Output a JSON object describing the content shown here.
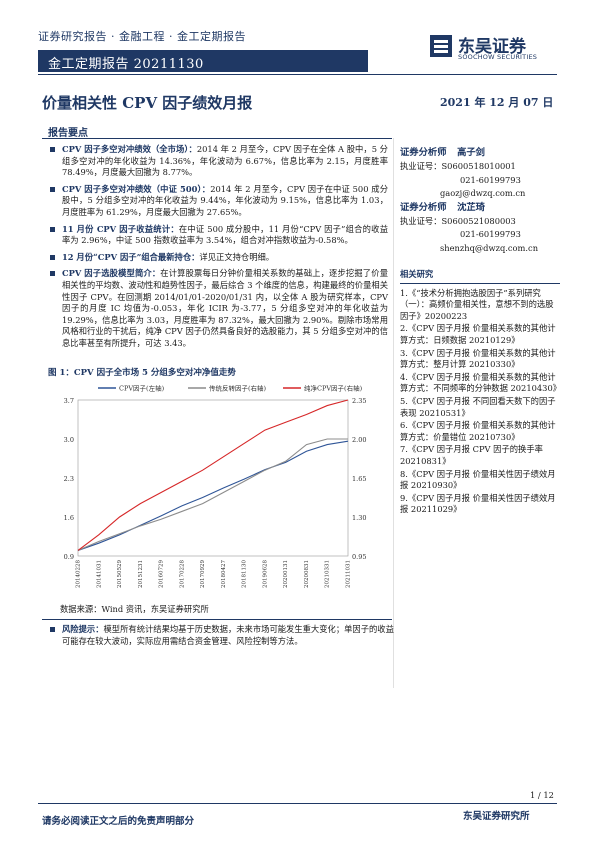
{
  "header": {
    "breadcrumb": "证券研究报告 · 金融工程 · 金工定期报告",
    "report_series": "金工定期报告 20211130",
    "logo_cn": "东吴证券",
    "logo_en": "SOOCHOW SECURITIES"
  },
  "title": "价量相关性 CPV 因子绩效月报",
  "date": "2021 年 12 月 07 日",
  "section_head": "报告要点",
  "bullets": [
    {
      "label": "CPV 因子多空对冲绩效（全市场）：",
      "text": "2014 年 2 月至今，CPV 因子在全体 A 股中，5 分组多空对冲的年化收益为 14.36%，年化波动为 6.67%，信息比率为 2.15，月度胜率 78.49%，月度最大回撤为 8.77%。"
    },
    {
      "label": "CPV 因子多空对冲绩效（中证 500）：",
      "text": "2014 年 2 月至今，CPV 因子在中证 500 成分股中，5 分组多空对冲的年化收益为 9.44%，年化波动为 9.15%，信息比率为 1.03，月度胜率为 61.29%，月度最大回撤为 27.65%。"
    },
    {
      "label": "11 月份 CPV 因子收益统计：",
      "text": "在中证 500 成分股中，11 月份“CPV 因子”组合的收益率为 2.96%，中证 500 指数收益率为 3.54%，组合对冲指数收益为-0.58%。"
    },
    {
      "label": "12 月份“CPV 因子”组合最新持仓：",
      "text": "详见正文持仓明细。"
    },
    {
      "label": "CPV 因子选股模型简介：",
      "text": "在计算股票每日分钟价量相关系数的基础上，逐步挖掘了价量相关性的平均数、波动性和趋势性因子，最后综合 3 个维度的信息，构建最终的价量相关性因子 CPV。在回测期 2014/01/01-2020/01/31 内，以全体 A 股为研究样本，CPV 因子的月度 IC 均值为-0.053，年化 ICIR 为-3.77，5 分组多空对冲的年化收益为 19.29%，信息比率为 3.03，月度胜率为 87.32%，最大回撤为 2.90%。剔除市场常用风格和行业的干扰后，纯净 CPV 因子仍然具备良好的选股能力，其 5 分组多空对冲的信息比率甚至有所提升，可达 3.43。"
    }
  ],
  "figure_title": "图 1：CPV 因子全市场 5 分组多空对冲净值走势",
  "source": "数据来源：Wind 资讯，东吴证券研究所",
  "risk": {
    "label": "风险提示：",
    "text": "模型所有统计结果均基于历史数据，未来市场可能发生重大变化；单因子的收益可能存在较大波动，实际应用需结合资金管理、风险控制等方法。"
  },
  "analysts": [
    {
      "role": "证券分析师",
      "name": "高子剑",
      "cert_label": "执业证号：",
      "cert": "S0600518010001",
      "phone": "021-60199793",
      "email": "gaozj@dwzq.com.cn"
    },
    {
      "role": "证券分析师",
      "name": "沈芷琦",
      "cert_label": "执业证号：",
      "cert": "S0600521080003",
      "phone": "021-60199793",
      "email": "shenzhq@dwzq.com.cn"
    }
  ],
  "related_head": "相关研究",
  "related": [
    "1.《“技术分析拥抱选股因子”系列研究（一）：高频价量相关性，意想不到的选股因子》20200223",
    "2.《CPV 因子月报 价量相关系数的其他计算方式：日频数据 20210129》",
    "3.《CPV 因子月报 价量相关系数的其他计算方式：整月计算 20210330》",
    "4.《CPV 因子月报 价量相关系数的其他计算方式：不同频率的分钟数据 20210430》",
    "5.《CPV 因子月报 不同回看天数下的因子表现 20210531》",
    "6.《CPV 因子月报 价量相关系数的其他计算方式：价量错位 20210730》",
    "7.《CPV 因子月报 CPV 因子的换手率 20210831》",
    "8.《CPV 因子月报 价量相关性因子绩效月报 20210930》",
    "9.《CPV 因子月报 价量相关性因子绩效月报 20211029》"
  ],
  "footer": {
    "page": "1 / 12",
    "disclaimer": "请务必阅读正文之后的免责声明部分",
    "institute": "东吴证券研究所"
  },
  "colors": {
    "navy": "#1f3864",
    "cpv": "#2f5597",
    "traditional": "#8c8c8c",
    "pure": "#d62728"
  },
  "chart_data": {
    "type": "line",
    "x": [
      "20140228",
      "20141031",
      "20150529",
      "20151231",
      "20160729",
      "20170228",
      "20170929",
      "20180427",
      "20181130",
      "20190628",
      "20200131",
      "20200831",
      "20210331",
      "20211031"
    ],
    "series": [
      {
        "name": "CPV因子(左轴)",
        "axis": "left",
        "values": [
          1.0,
          1.13,
          1.28,
          1.45,
          1.62,
          1.8,
          1.95,
          2.12,
          2.28,
          2.45,
          2.58,
          2.78,
          2.9,
          2.96
        ]
      },
      {
        "name": "传统反转因子(右轴)",
        "axis": "right",
        "values": [
          1.0,
          1.08,
          1.15,
          1.22,
          1.28,
          1.35,
          1.42,
          1.52,
          1.62,
          1.72,
          1.8,
          1.95,
          2.0,
          2.0
        ]
      },
      {
        "name": "纯净CPV因子(右轴)",
        "axis": "right",
        "values": [
          1.0,
          1.14,
          1.3,
          1.42,
          1.52,
          1.62,
          1.72,
          1.84,
          1.96,
          2.08,
          2.15,
          2.22,
          2.3,
          2.35
        ]
      }
    ],
    "yticks_left": [
      "0.9",
      "1.6",
      "2.3",
      "3.0",
      "3.7"
    ],
    "yticks_right": [
      "0.95",
      "1.30",
      "1.65",
      "2.00",
      "2.35"
    ],
    "ylim_left": [
      0.9,
      3.7
    ],
    "ylim_right": [
      0.95,
      2.35
    ],
    "legend": "top"
  }
}
